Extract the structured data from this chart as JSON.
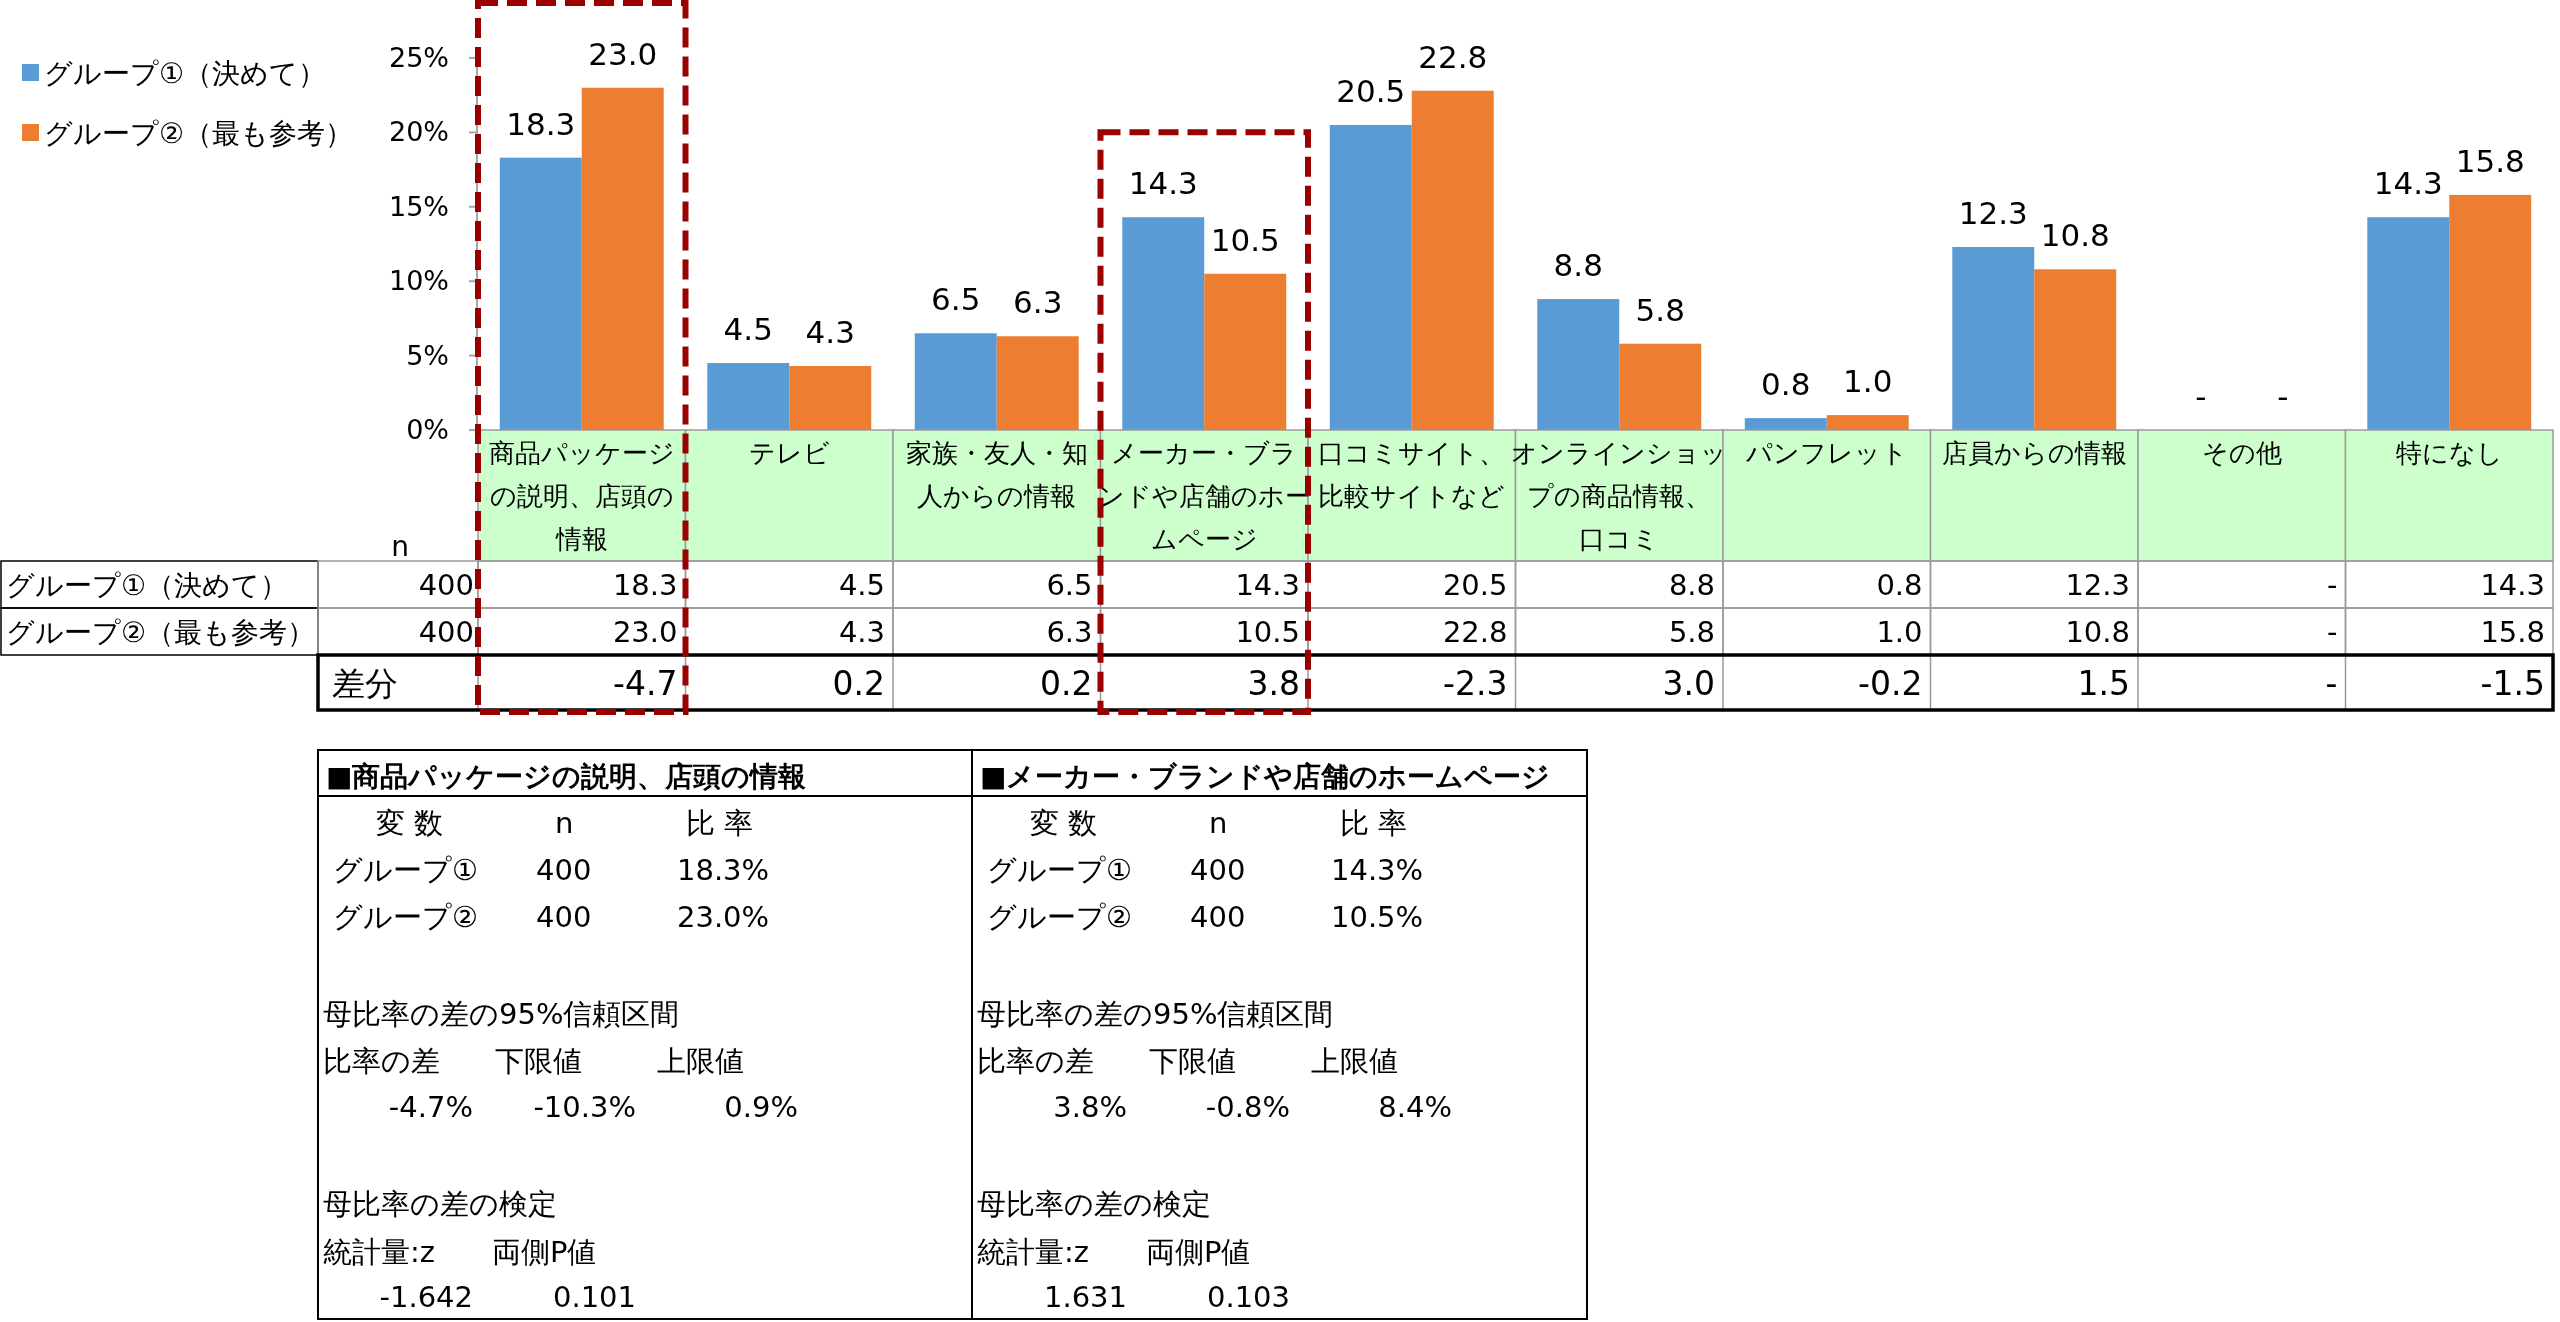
{
  "chart_data": [
    {
      "type": "bar",
      "categories": [
        "商品パッケージの説明、店頭の情報",
        "テレビ",
        "家族・友人・知人からの情報",
        "メーカー・ブランドや店舗のホームページ",
        "口コミサイト、比較サイトなど",
        "オンラインショップの商品情報、口コミ",
        "パンフレット",
        "店員からの情報",
        "その他",
        "特になし"
      ],
      "series": [
        {
          "name": "グループ①（決めて）",
          "color": "#5b9bd5",
          "values": [
            18.3,
            4.5,
            6.5,
            14.3,
            20.5,
            8.8,
            0.8,
            12.3,
            null,
            14.3
          ],
          "value_labels": [
            "18.3",
            "4.5",
            "6.5",
            "14.3",
            "20.5",
            "8.8",
            "0.8",
            "12.3",
            "-",
            "14.3"
          ]
        },
        {
          "name": "グループ②（最も参考）",
          "color": "#ed7d31",
          "values": [
            23.0,
            4.3,
            6.3,
            10.5,
            22.8,
            5.8,
            1.0,
            10.8,
            null,
            15.8
          ],
          "value_labels": [
            "23.0",
            "4.3",
            "6.3",
            "10.5",
            "22.8",
            "5.8",
            "1.0",
            "10.8",
            "-",
            "15.8"
          ]
        }
      ],
      "ylim": [
        0,
        25
      ],
      "yticks": [
        {
          "value": 0,
          "label": "0%"
        },
        {
          "value": 5,
          "label": "5%"
        },
        {
          "value": 10,
          "label": "10%"
        },
        {
          "value": 15,
          "label": "15%"
        },
        {
          "value": 20,
          "label": "20%"
        },
        {
          "value": 25,
          "label": "25%"
        }
      ],
      "legend": "top left",
      "annotations": [
        "n",
        "400",
        "400",
        "差分",
        "-4.7",
        "0.2",
        "0.2",
        "3.8",
        "-2.3",
        "3.0",
        "-0.2",
        "1.5",
        "-",
        "-1.5"
      ]
    },
    {
      "type": "other",
      "title": "■商品パッケージの説明、店頭の情報",
      "annotations": [
        "変 数",
        "n",
        "比 率",
        "グループ①",
        "400",
        "18.3%",
        "グループ②",
        "400",
        "23.0%",
        "母比率の差の95%信頼区間",
        "比率の差",
        "下限値",
        "上限値",
        "-4.7%",
        "-10.3%",
        "0.9%",
        "母比率の差の検定",
        "統計量:z",
        "両側P値",
        "-1.642",
        "0.101"
      ]
    },
    {
      "type": "other",
      "title": "■メーカー・ブランドや店舗のホームページ",
      "annotations": [
        "変 数",
        "n",
        "比 率",
        "グループ①",
        "400",
        "14.3%",
        "グループ②",
        "400",
        "10.5%",
        "母比率の差の95%信頼区間",
        "比率の差",
        "下限値",
        "上限値",
        "3.8%",
        "-0.8%",
        "8.4%",
        "母比率の差の検定",
        "統計量:z",
        "両側P値",
        "1.631",
        "0.103"
      ]
    }
  ]
}
